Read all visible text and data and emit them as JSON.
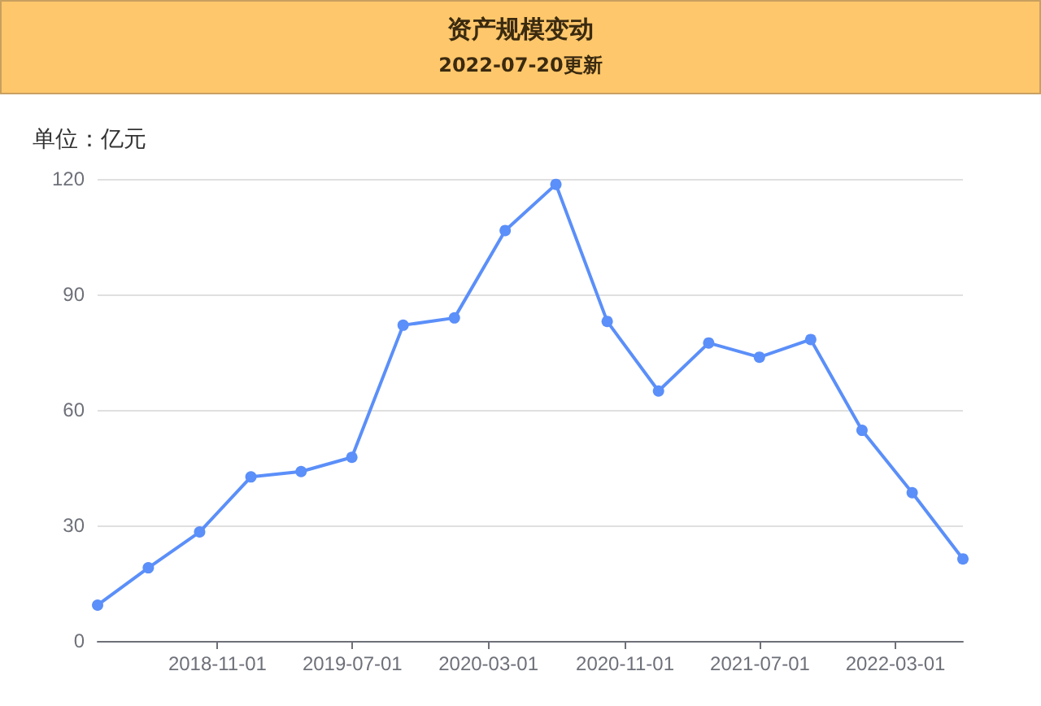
{
  "chart_data": {
    "type": "line",
    "title": "资产规模变动",
    "subtitle": "2022-07-20更新",
    "ylabel": "单位：亿元",
    "x": [
      "2018-03-31",
      "2018-06-30",
      "2018-09-30",
      "2018-12-31",
      "2019-03-31",
      "2019-06-30",
      "2019-09-30",
      "2019-12-31",
      "2020-03-31",
      "2020-06-30",
      "2020-09-30",
      "2020-12-31",
      "2021-03-31",
      "2021-06-30",
      "2021-09-30",
      "2021-12-31",
      "2022-03-31",
      "2022-06-30"
    ],
    "series": [
      {
        "color": "#5b8ff9",
        "values": [
          9.3,
          19,
          28.3,
          42.6,
          44,
          47.7,
          82,
          83.9,
          106.6,
          118.6,
          83,
          64.9,
          77.4,
          73.7,
          78.3,
          54.7,
          38.5,
          21.3
        ]
      }
    ],
    "xlim": [
      "2018-03-31",
      "2022-06-30"
    ],
    "xticks": [
      "2018-11-01",
      "2019-07-01",
      "2020-03-01",
      "2020-11-01",
      "2021-07-01",
      "2022-03-01"
    ],
    "ylim": [
      0,
      120
    ],
    "yticks": [
      0,
      30,
      60,
      90,
      120
    ],
    "grid": "y",
    "marker": "circle",
    "line_style": "solid"
  }
}
